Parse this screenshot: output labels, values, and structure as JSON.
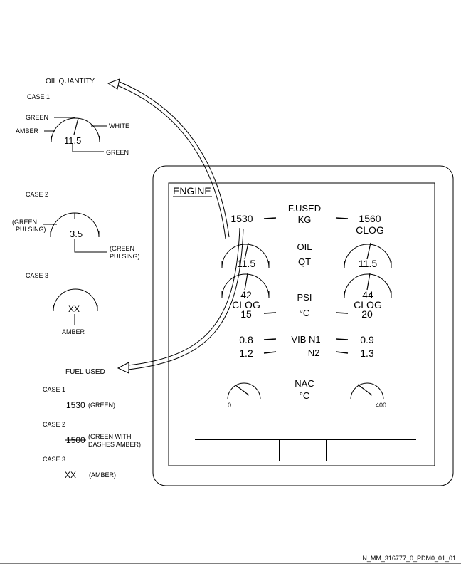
{
  "left_panel": {
    "oil_quantity_title": "OIL QUANTITY",
    "case1": {
      "label": "CASE 1",
      "green_top": "GREEN",
      "amber": "AMBER",
      "white": "WHITE",
      "value": "11.5",
      "green_bottom": "GREEN"
    },
    "case2": {
      "label": "CASE 2",
      "green_pulsing_left_1": "(GREEN",
      "green_pulsing_left_2": "PULSING)",
      "value": "3.5",
      "green_pulsing_right_1": "(GREEN",
      "green_pulsing_right_2": "PULSING)"
    },
    "case3": {
      "label": "CASE 3",
      "value": "XX",
      "amber": "AMBER"
    },
    "fuel_used_title": "FUEL USED",
    "fuel_case1": {
      "label": "CASE 1",
      "value": "1530",
      "note": "(GREEN)"
    },
    "fuel_case2": {
      "label": "CASE 2",
      "value": "1500",
      "note_1": "(GREEN WITH",
      "note_2": "DASHES AMBER)"
    },
    "fuel_case3": {
      "label": "CASE 3",
      "value": "XX",
      "note": "(AMBER)"
    }
  },
  "display": {
    "title": "ENGINE",
    "fuel_used_label": "F.USED",
    "fuel_used_unit": "KG",
    "fuel_used_left": "1530",
    "fuel_used_right": "1560",
    "clog_fuel_right": "CLOG",
    "oil_label": "OIL",
    "oil_unit": "QT",
    "oil_left": "11.5",
    "oil_right": "11.5",
    "psi_label": "PSI",
    "psi_left": "42",
    "psi_right": "44",
    "clog_left": "CLOG",
    "clog_right": "CLOG",
    "temp_unit": "°C",
    "temp_left": "15",
    "temp_right": "20",
    "vib_n1_label": "VIB N1",
    "vib_n1_left": "0.8",
    "vib_n1_right": "0.9",
    "n2_label": "N2",
    "n2_left": "1.2",
    "n2_right": "1.3",
    "nac_label": "NAC",
    "nac_unit": "°C",
    "nac_left_scale": "0",
    "nac_right_scale": "400"
  },
  "reference_code": "N_MM_316777_0_PDM0_01_01"
}
